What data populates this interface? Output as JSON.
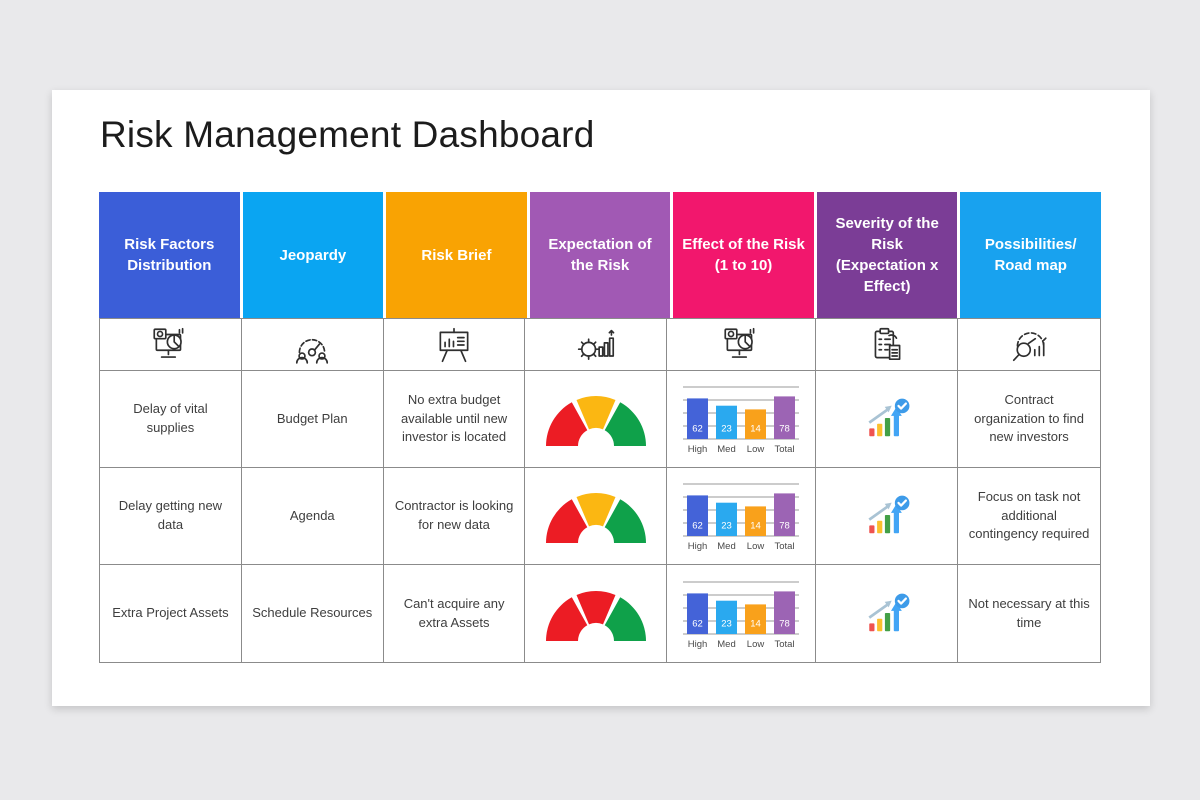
{
  "title": "Risk Management Dashboard",
  "colors": {
    "page_background": "#e9e9eb",
    "card_background": "#ffffff",
    "grid_border": "#8b8b8b",
    "body_text": "#3e3e3e",
    "icon_stroke": "#2f2f2f"
  },
  "table": {
    "columns": [
      {
        "label": "Risk Factors Distribution",
        "color": "#3b5ed8",
        "icon": "monitor-pie-chart-icon"
      },
      {
        "label": "Jeopardy",
        "color": "#0aa5f2",
        "icon": "gauge-people-icon"
      },
      {
        "label": "Risk Brief",
        "color": "#f9a303",
        "icon": "presentation-chart-icon"
      },
      {
        "label": "Expectation of the Risk",
        "color": "#a159b4",
        "icon": "gear-chart-icon"
      },
      {
        "label": "Effect of the Risk (1 to 10)",
        "color": "#f2176d",
        "icon": "monitor-pie-chart-icon"
      },
      {
        "label": "Severity of the Risk (Expectation x Effect)",
        "color": "#7b3d96",
        "icon": "clipboard-report-icon"
      },
      {
        "label": "Possibilities/ Road map",
        "color": "#18a2ef",
        "icon": "magnifier-gauge-icon"
      }
    ],
    "rows": [
      {
        "risk_factor": "Delay of vital supplies",
        "jeopardy": "Budget Plan",
        "risk_brief": "No extra budget available until new investor is located",
        "expectation_gauge_colors": [
          "#ec1c24",
          "#fbb712",
          "#0fa14a"
        ],
        "effect_chart_ref": 0,
        "severity_icon": "growth-check-icon",
        "possibilities": "Contract organization to find new investors"
      },
      {
        "risk_factor": "Delay getting new data",
        "jeopardy": "Agenda",
        "risk_brief": "Contractor is looking for new data",
        "expectation_gauge_colors": [
          "#ec1c24",
          "#fbb712",
          "#0fa14a"
        ],
        "effect_chart_ref": 1,
        "severity_icon": "growth-check-icon",
        "possibilities": "Focus on task not additional contingency required"
      },
      {
        "risk_factor": "Extra Project Assets",
        "jeopardy": "Schedule Resources",
        "risk_brief": "Can't acquire any extra Assets",
        "expectation_gauge_colors": [
          "#ec1c24",
          "#ec1c24",
          "#0fa14a"
        ],
        "effect_chart_ref": 2,
        "severity_icon": "growth-check-icon",
        "possibilities": "Not necessary at this time"
      }
    ]
  },
  "chart_data": [
    {
      "type": "bar",
      "row_label": "Delay of vital supplies",
      "title": "Effect of the Risk (1 to 10)",
      "categories": [
        "High",
        "Med",
        "Low",
        "Total"
      ],
      "values": [
        62,
        23,
        14,
        78
      ],
      "bar_colors": [
        "#4463d8",
        "#2aa9ef",
        "#f9a11b",
        "#9c64b4"
      ],
      "display_heights": [
        0.78,
        0.64,
        0.57,
        0.82
      ],
      "grid": true,
      "value_labels_color": "#ffffff"
    },
    {
      "type": "bar",
      "row_label": "Delay getting new data",
      "title": "Effect of the Risk (1 to 10)",
      "categories": [
        "High",
        "Med",
        "Low",
        "Total"
      ],
      "values": [
        62,
        23,
        14,
        78
      ],
      "bar_colors": [
        "#4463d8",
        "#2aa9ef",
        "#f9a11b",
        "#9c64b4"
      ],
      "display_heights": [
        0.78,
        0.64,
        0.57,
        0.82
      ],
      "grid": true,
      "value_labels_color": "#ffffff"
    },
    {
      "type": "bar",
      "row_label": "Extra Project Assets",
      "title": "Effect of the Risk (1 to 10)",
      "categories": [
        "High",
        "Med",
        "Low",
        "Total"
      ],
      "values": [
        62,
        23,
        14,
        78
      ],
      "bar_colors": [
        "#4463d8",
        "#2aa9ef",
        "#f9a11b",
        "#9c64b4"
      ],
      "display_heights": [
        0.78,
        0.64,
        0.57,
        0.82
      ],
      "grid": true,
      "value_labels_color": "#ffffff"
    }
  ]
}
